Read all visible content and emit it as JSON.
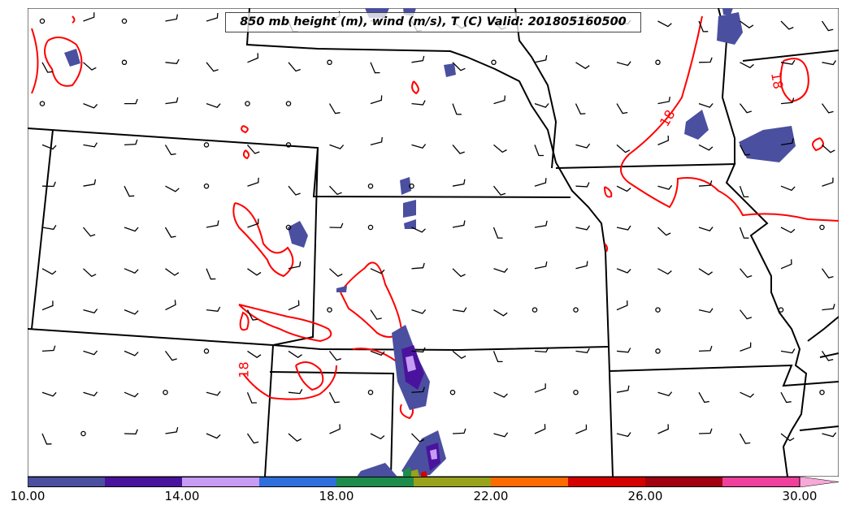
{
  "title": "850 mb height (m), wind (m/s), T (C) Valid: 201805160500",
  "contour_labels": [
    "18",
    "18",
    "18"
  ],
  "colorbar": {
    "colors": [
      "#4b4f9f",
      "#4a139e",
      "#c89bf5",
      "#2e6fdd",
      "#1e8c4a",
      "#99a21b",
      "#ff6a00",
      "#d40000",
      "#a00010",
      "#f03f9c",
      "#f7a8d8"
    ],
    "tick_labels": [
      "10.00",
      "14.00",
      "18.00",
      "22.00",
      "26.00",
      "30.00"
    ],
    "range": [
      10,
      30
    ]
  },
  "map": {
    "contour_value": "18",
    "temperature_contour_color": "#ff0000",
    "boundary_color": "#000000"
  }
}
